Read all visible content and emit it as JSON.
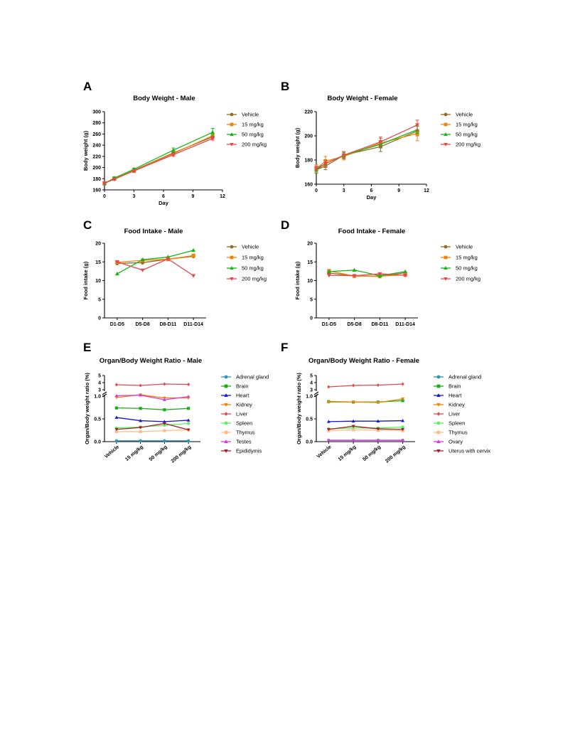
{
  "colors": {
    "Vehicle": "#8c6d2c",
    "15 mg/kg": "#f0840a",
    "50 mg/kg": "#18b418",
    "200 mg/kg": "#e6484c",
    "Adrenal gland": "#2b95b8",
    "Brain": "#14b014",
    "Heart": "#1515d6",
    "Kidney": "#f0840a",
    "Liver": "#e6484c",
    "Spleen": "#5ef05e",
    "Thymus": "#f9c08c",
    "Testes": "#d83ad8",
    "Epididymis": "#a0202a",
    "Ovary": "#d83ad8",
    "Uterus with cervix": "#a0202a"
  },
  "chart_data": [
    {
      "id": "A",
      "type": "line",
      "title": "Body Weight - Male",
      "xlabel": "Day",
      "ylabel": "Body weight (g)",
      "xlim": [
        0,
        12
      ],
      "ylim": [
        160,
        300
      ],
      "xticks": [
        "0",
        "3",
        "6",
        "9",
        "12"
      ],
      "yticks": [
        "160",
        "180",
        "200",
        "220",
        "240",
        "260",
        "280",
        "300"
      ],
      "x": [
        0,
        1,
        3,
        7,
        11
      ],
      "series": [
        {
          "name": "Vehicle",
          "marker": "circle",
          "values": [
            172,
            180,
            195,
            226,
            255
          ],
          "err": [
            2,
            2,
            2,
            3,
            3
          ]
        },
        {
          "name": "15 mg/kg",
          "marker": "square",
          "values": [
            172,
            181,
            194,
            225,
            257
          ],
          "err": [
            2,
            2,
            3,
            3,
            4
          ]
        },
        {
          "name": "50 mg/kg",
          "marker": "triangle",
          "values": [
            171,
            181,
            197,
            231,
            263
          ],
          "err": [
            2,
            2,
            2,
            4,
            7
          ]
        },
        {
          "name": "200 mg/kg",
          "marker": "tridown",
          "values": [
            172,
            179,
            194,
            223,
            252
          ],
          "err": [
            2,
            2,
            2,
            3,
            3
          ]
        }
      ]
    },
    {
      "id": "B",
      "type": "line",
      "title": "Body Weight - Female",
      "xlabel": "Day",
      "ylabel": "Body weight (g)",
      "xlim": [
        0,
        12
      ],
      "ylim": [
        160,
        220
      ],
      "xticks": [
        "0",
        "3",
        "6",
        "9",
        "12"
      ],
      "yticks": [
        "160",
        "180",
        "200",
        "220"
      ],
      "x": [
        0,
        1,
        3,
        7,
        11
      ],
      "series": [
        {
          "name": "Vehicle",
          "marker": "circle",
          "values": [
            172,
            175,
            184,
            191,
            204
          ],
          "err": [
            3,
            3,
            3,
            4,
            4
          ]
        },
        {
          "name": "15 mg/kg",
          "marker": "square",
          "values": [
            173,
            179,
            183,
            194,
            202
          ],
          "err": [
            3,
            4,
            3,
            4,
            6
          ]
        },
        {
          "name": "50 mg/kg",
          "marker": "triangle",
          "values": [
            172,
            177,
            184,
            193,
            205
          ],
          "err": [
            2,
            3,
            2,
            3,
            3
          ]
        },
        {
          "name": "200 mg/kg",
          "marker": "tridown",
          "values": [
            173,
            177,
            184,
            195,
            209
          ],
          "err": [
            2,
            3,
            3,
            4,
            4
          ]
        }
      ]
    },
    {
      "id": "C",
      "type": "line",
      "title": "Food Intake - Male",
      "xlabel": "",
      "ylabel": "Food intake (g)",
      "ylim": [
        0,
        20
      ],
      "yticks": [
        "0",
        "5",
        "10",
        "15",
        "20"
      ],
      "categories": [
        "D1-D5",
        "D5-D8",
        "D8-D11",
        "D11-D14"
      ],
      "series": [
        {
          "name": "Vehicle",
          "marker": "circle",
          "values": [
            14.6,
            14.8,
            15.7,
            16.5
          ]
        },
        {
          "name": "15 mg/kg",
          "marker": "square",
          "values": [
            14.9,
            15.4,
            15.7,
            16.7
          ]
        },
        {
          "name": "50 mg/kg",
          "marker": "triangle",
          "values": [
            11.8,
            15.6,
            16.3,
            18.1
          ]
        },
        {
          "name": "200 mg/kg",
          "marker": "tridown",
          "values": [
            15.0,
            12.8,
            15.8,
            11.3
          ]
        }
      ]
    },
    {
      "id": "D",
      "type": "line",
      "title": "Food Intake - Female",
      "xlabel": "",
      "ylabel": "Food intake (g)",
      "ylim": [
        0,
        20
      ],
      "yticks": [
        "0",
        "5",
        "10",
        "15",
        "20"
      ],
      "categories": [
        "D1-D5",
        "D5-D8",
        "D8-D11",
        "D11-D14"
      ],
      "series": [
        {
          "name": "Vehicle",
          "marker": "circle",
          "values": [
            12.0,
            11.3,
            11.1,
            12.1
          ]
        },
        {
          "name": "15 mg/kg",
          "marker": "square",
          "values": [
            12.6,
            11.2,
            11.2,
            11.5
          ]
        },
        {
          "name": "50 mg/kg",
          "marker": "triangle",
          "values": [
            12.4,
            12.8,
            11.3,
            12.4
          ]
        },
        {
          "name": "200 mg/kg",
          "marker": "tridown",
          "values": [
            11.4,
            11.3,
            11.8,
            11.4
          ]
        }
      ]
    },
    {
      "id": "E",
      "type": "line",
      "title": "Organ/Body Weight Ratio - Male",
      "xlabel": "",
      "ylabel": "Organ/Body weight ratio (%)",
      "ylim": [
        0,
        1.0
      ],
      "ylim_upper": [
        3,
        5
      ],
      "yticks": [
        "0.0",
        "0.5",
        "1.0"
      ],
      "yticks_upper": [
        "3",
        "4",
        "5"
      ],
      "categories": [
        "Vehicle",
        "15 mg/kg",
        "50 mg/kg",
        "200 mg/kg"
      ],
      "series": [
        {
          "name": "Adrenal gland",
          "marker": "circle",
          "values": [
            0.02,
            0.02,
            0.02,
            0.02
          ]
        },
        {
          "name": "Brain",
          "marker": "square",
          "values": [
            0.74,
            0.73,
            0.7,
            0.73
          ]
        },
        {
          "name": "Heart",
          "marker": "triangle",
          "values": [
            0.53,
            0.46,
            0.44,
            0.47
          ]
        },
        {
          "name": "Kidney",
          "marker": "tridown",
          "values": [
            0.97,
            1.03,
            0.96,
            0.96
          ]
        },
        {
          "name": "Liver",
          "marker": "diamond",
          "values": [
            3.7,
            3.6,
            3.8,
            3.75
          ]
        },
        {
          "name": "Spleen",
          "marker": "circle",
          "values": [
            0.3,
            0.32,
            0.36,
            0.4
          ]
        },
        {
          "name": "Thymus",
          "marker": "square",
          "values": [
            0.22,
            0.22,
            0.24,
            0.26
          ]
        },
        {
          "name": "Testes",
          "marker": "triangle",
          "values": [
            1.01,
            1.02,
            0.92,
            0.99
          ]
        },
        {
          "name": "Epididymis",
          "marker": "tridown",
          "values": [
            0.27,
            0.31,
            0.4,
            0.26
          ]
        }
      ]
    },
    {
      "id": "F",
      "type": "line",
      "title": "Organ/Body Weight Ratio - Female",
      "xlabel": "",
      "ylabel": "Organ/Body weight ratio (%)",
      "ylim": [
        0,
        1.0
      ],
      "ylim_upper": [
        3,
        5
      ],
      "yticks": [
        "0.0",
        "0.5",
        "1.0"
      ],
      "yticks_upper": [
        "3",
        "4",
        "5"
      ],
      "categories": [
        "Vehicle",
        "15 mg/kg",
        "50 mg/kg",
        "200 mg/kg"
      ],
      "series": [
        {
          "name": "Adrenal gland",
          "marker": "circle",
          "values": [
            0.03,
            0.03,
            0.03,
            0.03
          ]
        },
        {
          "name": "Brain",
          "marker": "square",
          "values": [
            0.88,
            0.87,
            0.87,
            0.9
          ]
        },
        {
          "name": "Heart",
          "marker": "triangle",
          "values": [
            0.44,
            0.45,
            0.45,
            0.46
          ]
        },
        {
          "name": "Kidney",
          "marker": "tridown",
          "values": [
            0.87,
            0.87,
            0.86,
            0.94
          ]
        },
        {
          "name": "Liver",
          "marker": "diamond",
          "values": [
            3.4,
            3.6,
            3.65,
            3.8
          ]
        },
        {
          "name": "Spleen",
          "marker": "circle",
          "values": [
            0.28,
            0.3,
            0.3,
            0.32
          ]
        },
        {
          "name": "Thymus",
          "marker": "square",
          "values": [
            0.24,
            0.26,
            0.25,
            0.24
          ]
        },
        {
          "name": "Ovary",
          "marker": "triangle",
          "values": [
            0.03,
            0.03,
            0.03,
            0.03
          ]
        },
        {
          "name": "Uterus with cervix",
          "marker": "tridown",
          "values": [
            0.27,
            0.34,
            0.28,
            0.27
          ]
        }
      ]
    }
  ]
}
